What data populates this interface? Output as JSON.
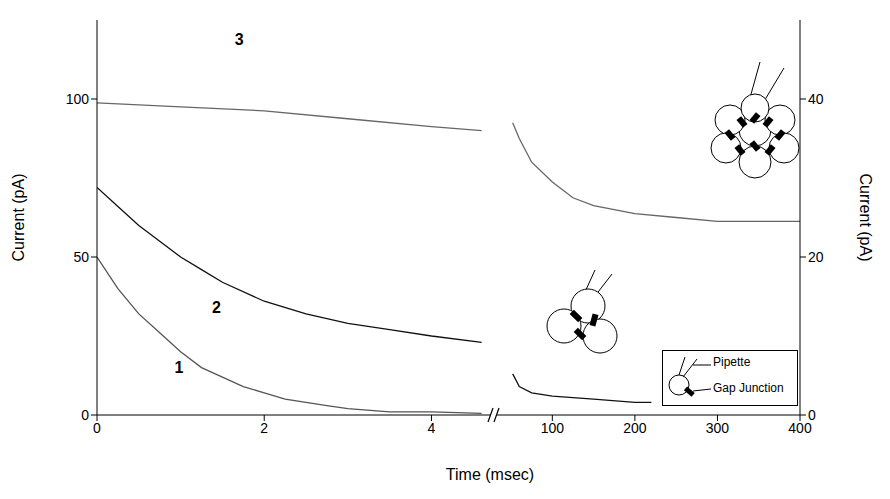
{
  "chart_data": [
    {
      "type": "line",
      "xlabel": "Time (msec)",
      "ylabel": "Current (pA)",
      "xlim": [
        0,
        4.7
      ],
      "xticks": [
        0,
        2,
        4
      ],
      "ylim": [
        0,
        125
      ],
      "yticks": [
        0,
        50,
        100
      ],
      "y2lim": [
        0,
        50
      ],
      "series": [
        {
          "color": "#555555",
          "axis": "y",
          "x": [
            0,
            0.25,
            0.5,
            0.75,
            1,
            1.25,
            1.5,
            1.75,
            2,
            2.25,
            2.5,
            2.75,
            3,
            3.5,
            4,
            4.6
          ],
          "values": [
            50,
            40,
            32,
            26,
            20,
            15,
            12,
            9,
            7,
            5,
            4,
            3,
            2,
            1,
            1,
            0.5
          ]
        },
        {
          "color": "#111111",
          "axis": "y",
          "x": [
            0,
            0.25,
            0.5,
            0.75,
            1,
            1.25,
            1.5,
            2,
            2.5,
            3,
            3.5,
            4,
            4.6
          ],
          "values": [
            72,
            66,
            60,
            55,
            50,
            46,
            42,
            36,
            32,
            29,
            27,
            25,
            23
          ]
        },
        {
          "color": "#666666",
          "axis": "y2",
          "x": [
            0,
            1,
            2,
            3,
            4,
            4.6
          ],
          "values": [
            39.5,
            39,
            38.5,
            37.5,
            36.5,
            36
          ]
        }
      ],
      "annotations": [
        {
          "text": "1",
          "x": 0.98,
          "y": 15,
          "axis": "y"
        },
        {
          "text": "2",
          "x": 1.43,
          "y": 34,
          "axis": "y"
        },
        {
          "text": "3",
          "x": 1.7,
          "y": 47.6,
          "axis": "y2"
        }
      ]
    },
    {
      "type": "line",
      "y2label": "Current (pA)",
      "xlim": [
        33,
        400
      ],
      "xticks": [
        100,
        200,
        300,
        400
      ],
      "ylim": [
        0,
        125
      ],
      "y2lim": [
        0,
        50
      ],
      "y2ticks": [
        0,
        20,
        40
      ],
      "series": [
        {
          "color": "#111111",
          "axis": "y",
          "x": [
            52,
            60,
            75,
            100,
            150,
            200,
            220
          ],
          "values": [
            13,
            9,
            7,
            6,
            5,
            4,
            4
          ]
        },
        {
          "color": "#666666",
          "axis": "y2",
          "x": [
            52,
            60,
            75,
            100,
            125,
            150,
            200,
            250,
            300,
            400
          ],
          "values": [
            37,
            35,
            32,
            29.5,
            27.5,
            26.5,
            25.5,
            25,
            24.5,
            24.5
          ]
        }
      ]
    }
  ],
  "inset": {
    "labels": [
      "Pipette",
      "Gap Junction"
    ]
  }
}
